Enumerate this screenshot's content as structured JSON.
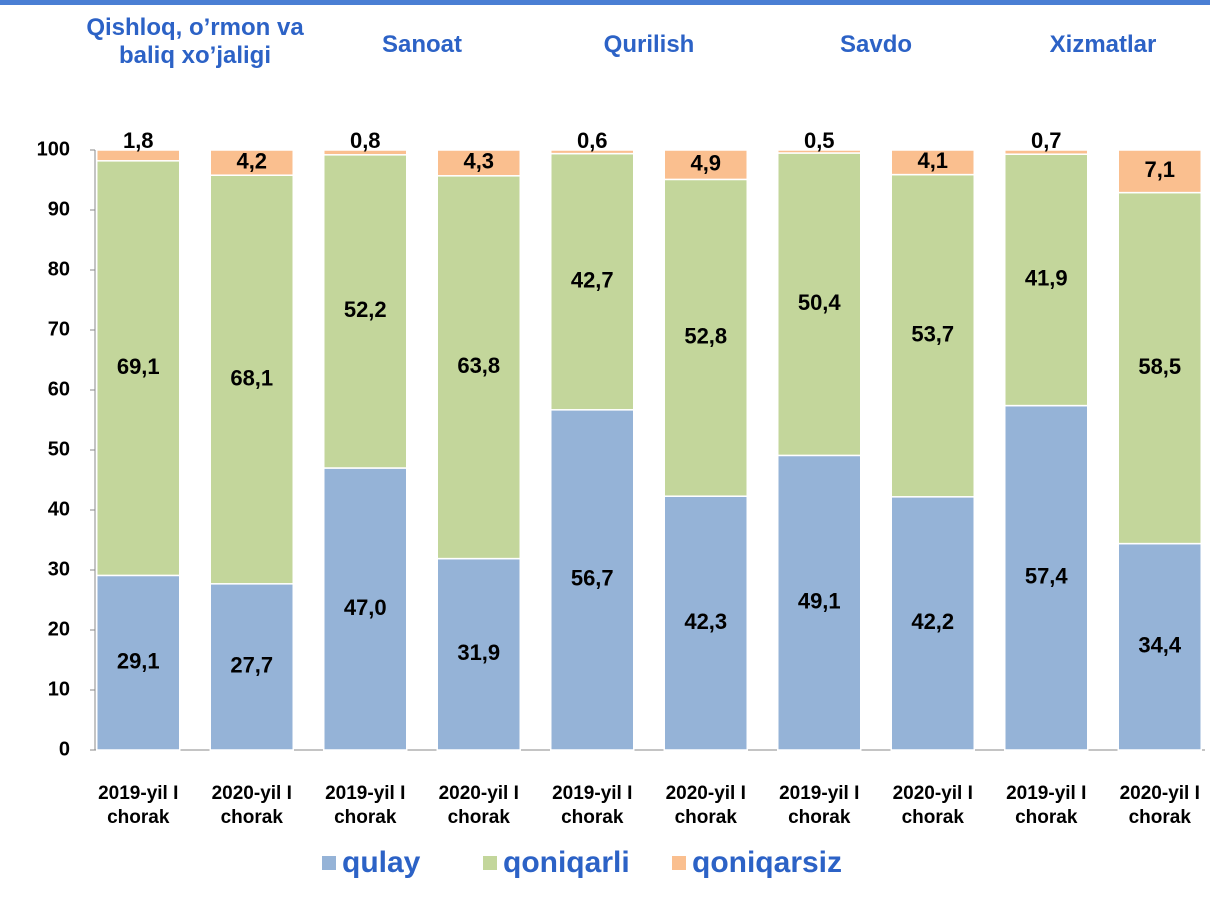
{
  "chart_data": {
    "type": "stacked_bar",
    "groups": [
      "Qishloq, o’rmon va baliq xo’jaligi",
      "Sanoat",
      "Qurilish",
      "Savdo",
      "Xizmatlar"
    ],
    "categories": [
      "2019-yil I chorak",
      "2020-yil I chorak",
      "2019-yil I chorak",
      "2020-yil I chorak",
      "2019-yil I chorak",
      "2020-yil I chorak",
      "2019-yil I chorak",
      "2020-yil I chorak",
      "2019-yil I chorak",
      "2020-yil I chorak"
    ],
    "series": [
      {
        "name": "qulay",
        "color": "#95b3d7",
        "values": [
          29.1,
          27.7,
          47.0,
          31.9,
          56.7,
          42.3,
          49.1,
          42.2,
          57.4,
          34.4
        ],
        "value_labels": [
          "29,1",
          "27,7",
          "47,0",
          "31,9",
          "56,7",
          "42,3",
          "49,1",
          "42,2",
          "57,4",
          "34,4"
        ]
      },
      {
        "name": "qoniqarli",
        "color": "#c3d69b",
        "values": [
          69.1,
          68.1,
          52.2,
          63.8,
          42.7,
          52.8,
          50.4,
          53.7,
          41.9,
          58.5
        ],
        "value_labels": [
          "69,1",
          "68,1",
          "52,2",
          "63,8",
          "42,7",
          "52,8",
          "50,4",
          "53,7",
          "41,9",
          "58,5"
        ]
      },
      {
        "name": "qoniqarsiz",
        "color": "#fabf8f",
        "values": [
          1.8,
          4.2,
          0.8,
          4.3,
          0.6,
          4.9,
          0.5,
          4.1,
          0.7,
          7.1
        ],
        "value_labels": [
          "1,8",
          "4,2",
          "0,8",
          "4,3",
          "0,6",
          "4,9",
          "0,5",
          "4,1",
          "0,7",
          "7,1"
        ]
      }
    ],
    "ylim": [
      0,
      100
    ],
    "yticks": [
      0,
      10,
      20,
      30,
      40,
      50,
      60,
      70,
      80,
      90,
      100
    ],
    "grid": false
  }
}
